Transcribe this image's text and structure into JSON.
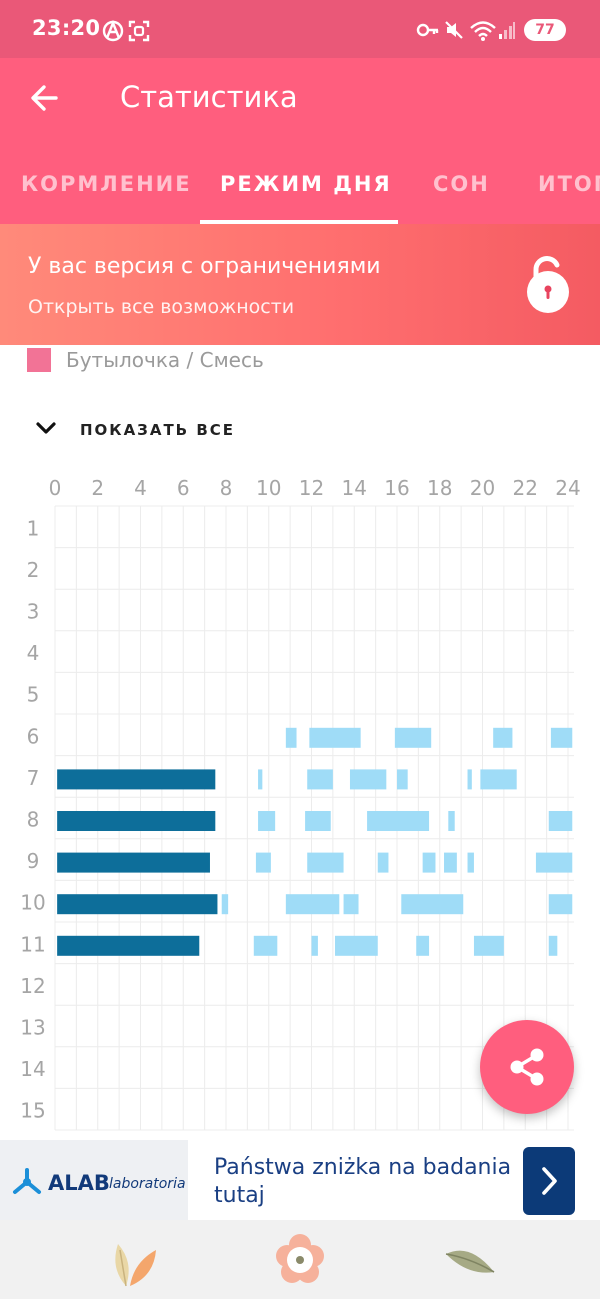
{
  "status_bar": {
    "time": "23:20",
    "battery": "77"
  },
  "app_bar": {
    "title": "Статистика"
  },
  "tabs": [
    {
      "label": "КОРМЛЕНИЕ",
      "active": false
    },
    {
      "label": "РЕЖИМ ДНЯ",
      "active": true
    },
    {
      "label": "СОН",
      "active": false
    },
    {
      "label": "ИТОГ",
      "active": false
    }
  ],
  "promo": {
    "title": "У вас версия с ограничениями",
    "subtitle": "Открыть все возможности"
  },
  "legend": {
    "label": "Бутылочка / Смесь",
    "color": "#f27396"
  },
  "show_all_label": "ПОКАЗАТЬ ВСЕ",
  "chart_data": {
    "type": "timeline",
    "x_ticks": [
      "0",
      "2",
      "4",
      "6",
      "8",
      "10",
      "12",
      "14",
      "16",
      "18",
      "20",
      "22",
      "24"
    ],
    "xlim": [
      0,
      24
    ],
    "rows": [
      "1",
      "2",
      "3",
      "4",
      "5",
      "6",
      "7",
      "8",
      "9",
      "10",
      "11",
      "12",
      "13",
      "14",
      "15"
    ],
    "series": [
      {
        "color": "#0d6e9a",
        "segments": [
          [
            7,
            0.1,
            7.5
          ],
          [
            8,
            0.1,
            7.5
          ],
          [
            9,
            0.1,
            7.25
          ],
          [
            10,
            0.1,
            7.6
          ],
          [
            11,
            0.1,
            6.75
          ]
        ]
      },
      {
        "color": "#9fdcf7",
        "segments": [
          [
            6,
            10.8,
            11.3
          ],
          [
            6,
            11.9,
            14.3
          ],
          [
            6,
            15.9,
            17.6
          ],
          [
            6,
            20.5,
            21.4
          ],
          [
            6,
            23.2,
            24.2
          ],
          [
            7,
            9.5,
            9.7
          ],
          [
            7,
            11.8,
            13
          ],
          [
            7,
            13.8,
            15.5
          ],
          [
            7,
            16,
            16.5
          ],
          [
            7,
            19.3,
            19.5
          ],
          [
            7,
            19.9,
            21.6
          ],
          [
            8,
            9.5,
            10.3
          ],
          [
            8,
            11.7,
            12.9
          ],
          [
            8,
            14.6,
            17.5
          ],
          [
            8,
            18.4,
            18.7
          ],
          [
            8,
            23.1,
            24.2
          ],
          [
            9,
            9.4,
            10.1
          ],
          [
            9,
            11.8,
            13.5
          ],
          [
            9,
            15.1,
            15.6
          ],
          [
            9,
            17.2,
            17.8
          ],
          [
            9,
            18.2,
            18.8
          ],
          [
            9,
            19.3,
            19.6
          ],
          [
            9,
            22.5,
            24.2
          ],
          [
            10,
            7.8,
            8.1
          ],
          [
            10,
            10.8,
            13.3
          ],
          [
            10,
            13.5,
            14.2
          ],
          [
            10,
            16.2,
            19.1
          ],
          [
            10,
            23.1,
            24.2
          ],
          [
            11,
            9.3,
            10.4
          ],
          [
            11,
            12,
            12.3
          ],
          [
            11,
            13.1,
            15.1
          ],
          [
            11,
            16.9,
            17.5
          ],
          [
            11,
            19.6,
            21
          ],
          [
            11,
            23.1,
            23.5
          ]
        ]
      }
    ]
  },
  "ad": {
    "logo": "ALAB",
    "logo_sub": "laboratoria",
    "text": "Państwa zniżka na badania tutaj"
  },
  "bottom_nav": [
    {
      "icon": "leaf-pair-icon"
    },
    {
      "icon": "flower-icon"
    },
    {
      "icon": "leaf-icon"
    }
  ]
}
